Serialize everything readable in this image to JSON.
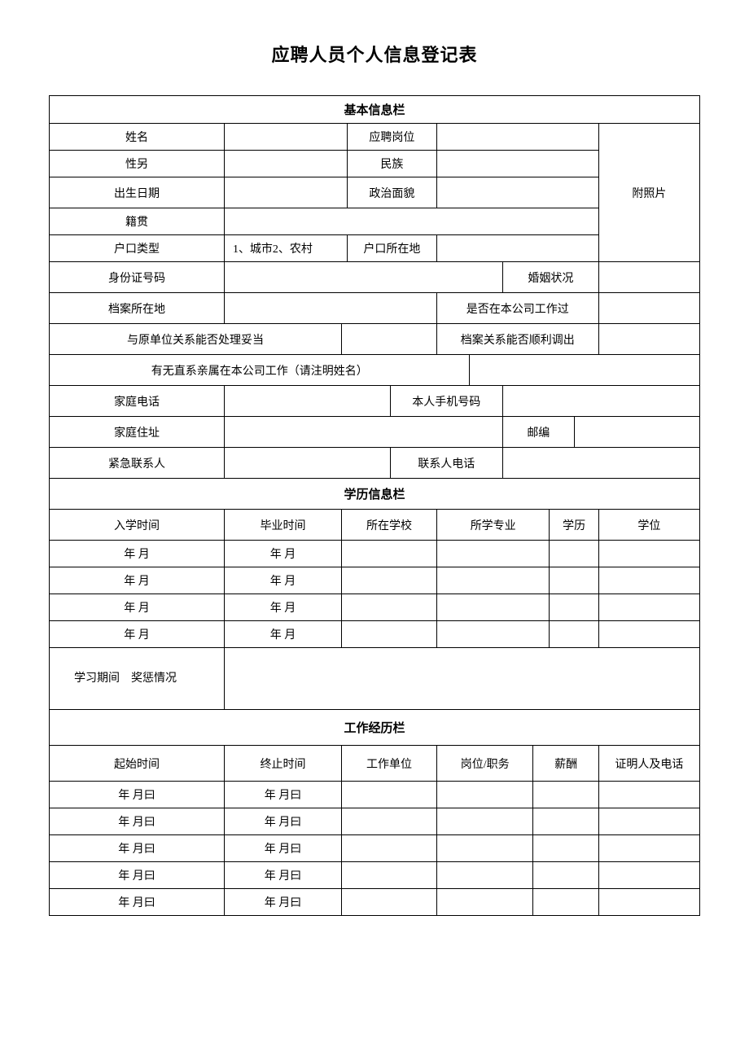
{
  "title": "应聘人员个人信息登记表",
  "sections": {
    "basic": "基本信息栏",
    "education": "学历信息栏",
    "work": "工作经历栏"
  },
  "labels": {
    "name": "姓名",
    "position": "应聘岗位",
    "gender": "性另",
    "ethnicity": "民族",
    "birth": "出生日期",
    "politics": "政治面貌",
    "photo": "附照片",
    "native_place": "籍贯",
    "hukou_type": "户口类型",
    "hukou_options": "1、城市2、农村",
    "hukou_loc": "户口所在地",
    "id_number": "身份证号码",
    "marital": "婚姻状况",
    "archive_loc": "档案所在地",
    "worked_here": "是否在本公司工作过",
    "prev_relation": "与原单位关系能否处理妥当",
    "archive_transfer": "档案关系能否顺利调出",
    "relatives": "有无直系亲属在本公司工作（请注明姓名）",
    "home_phone": "家庭电话",
    "mobile": "本人手机号码",
    "home_addr": "家庭住址",
    "postcode": "邮编",
    "emergency": "紧急联系人",
    "contact_phone": "联系人电话",
    "enroll_time": "入学时间",
    "grad_time": "毕业时间",
    "school": "所在学校",
    "major": "所学专业",
    "edu_level": "学历",
    "degree": "学位",
    "ym": "年 月",
    "study_rewards": "学习期间　奖惩情况",
    "start_time": "起始时间",
    "end_time": "终止时间",
    "work_unit": "工作单位",
    "job_title": "岗位/职务",
    "salary": "薪酬",
    "reference": "证明人及电话",
    "ymd": "年 月曰"
  },
  "colors": {
    "border": "#000000",
    "background": "#ffffff",
    "text": "#000000"
  },
  "typography": {
    "title_size": 22,
    "body_size": 14,
    "font_family": "SimSun"
  },
  "education_rows": 4,
  "work_rows": 5
}
